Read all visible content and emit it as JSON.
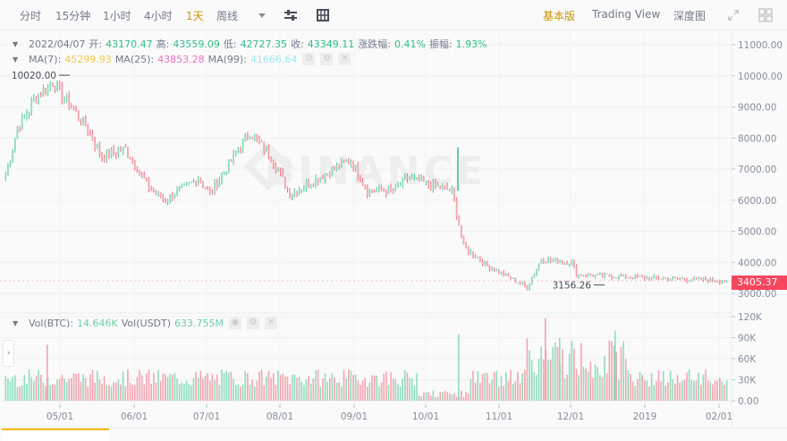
{
  "toolbar": {
    "intervals": [
      {
        "label": "分时",
        "active": false
      },
      {
        "label": "15分钟",
        "active": false
      },
      {
        "label": "1小时",
        "active": false
      },
      {
        "label": "4小时",
        "active": false
      },
      {
        "label": "1天",
        "active": true
      },
      {
        "label": "周线",
        "active": false
      }
    ],
    "more_icon": "caret-down-icon",
    "indicator_icon": "sliders-icon",
    "layout_icon": "grid-table-icon",
    "views": [
      {
        "label": "基本版",
        "active": true
      },
      {
        "label": "Trading View",
        "active": false
      },
      {
        "label": "深度图",
        "active": false
      }
    ],
    "fullscreen_icon": "expand-icon",
    "panels_icon": "four-squares-icon"
  },
  "ohlc_legend": {
    "date": "2022/04/07",
    "open_label": "开:",
    "open": "43170.47",
    "high_label": "高:",
    "high": "43559.09",
    "low_label": "低:",
    "low": "42727.35",
    "close_label": "收:",
    "close": "43349.11",
    "change_label": "涨跌幅:",
    "change": "0.41%",
    "amplitude_label": "振幅:",
    "amplitude": "1.93%"
  },
  "ma_legend": {
    "ma7_label": "MA(7):",
    "ma7": "45299.93",
    "ma25_label": "MA(25):",
    "ma25": "43853.28",
    "ma99_label": "MA(99):",
    "ma99": "41666.64"
  },
  "vol_legend": {
    "btc_label": "Vol(BTC):",
    "btc": "14.646K",
    "usdt_label": "Vol(USDT)",
    "usdt": "633.755M"
  },
  "current_price": "3405.37",
  "max_marker": "10020.00",
  "min_marker": "3156.26",
  "watermark": "BINANCE",
  "colors": {
    "up": "#2ebd85",
    "down": "#f6465d",
    "accent": "#c99400",
    "price_label_bg": "#f6465d"
  },
  "chart_data": [
    {
      "type": "candlestick",
      "title": "Price (daily)",
      "xlabel": "",
      "ylabel": "",
      "x_ticks": [
        "05/01",
        "06/01",
        "07/01",
        "08/01",
        "09/01",
        "10/01",
        "11/01",
        "12/01",
        "2019",
        "02/01"
      ],
      "y_ticks": [
        "11000.00",
        "10000.00",
        "9000.00",
        "8000.00",
        "7000.00",
        "6000.00",
        "5000.00",
        "4000.00",
        "3000.00"
      ],
      "ylim": [
        2700,
        11300
      ],
      "grid": true,
      "annotations": [
        {
          "label": "10020.00",
          "type": "max"
        },
        {
          "label": "3156.26",
          "type": "min"
        },
        {
          "label": "3405.37",
          "type": "last_price"
        }
      ],
      "approx_close_path": [
        {
          "date": "04/07",
          "close": 6800
        },
        {
          "date": "04/15",
          "close": 8300
        },
        {
          "date": "04/24",
          "close": 9300
        },
        {
          "date": "05/05",
          "close": 9800
        },
        {
          "date": "05/10",
          "close": 9300
        },
        {
          "date": "05/20",
          "close": 8400
        },
        {
          "date": "05/28",
          "close": 7400
        },
        {
          "date": "06/08",
          "close": 7650
        },
        {
          "date": "06/14",
          "close": 6400
        },
        {
          "date": "06/24",
          "close": 6000
        },
        {
          "date": "07/08",
          "close": 6700
        },
        {
          "date": "07/13",
          "close": 6200
        },
        {
          "date": "07/25",
          "close": 8200
        },
        {
          "date": "08/03",
          "close": 7400
        },
        {
          "date": "08/14",
          "close": 6200
        },
        {
          "date": "09/04",
          "close": 7300
        },
        {
          "date": "09/10",
          "close": 6300
        },
        {
          "date": "10/11",
          "close": 6300
        },
        {
          "date": "10/15",
          "close": 6700
        },
        {
          "date": "11/14",
          "close": 6300
        },
        {
          "date": "11/20",
          "close": 4500
        },
        {
          "date": "11/26",
          "close": 3900
        },
        {
          "date": "12/15",
          "close": 3200
        },
        {
          "date": "12/24",
          "close": 4100
        },
        {
          "date": "01/09",
          "close": 4000
        },
        {
          "date": "01/12",
          "close": 3600
        },
        {
          "date": "02/07",
          "close": 3405
        }
      ]
    },
    {
      "type": "bar",
      "title": "Volume",
      "series": [
        {
          "name": "Vol(BTC)",
          "last": "14.646K"
        },
        {
          "name": "Vol(USDT)",
          "last": "633.755M"
        }
      ],
      "y_ticks": [
        "120K",
        "90K",
        "60K",
        "30K",
        "0.00"
      ],
      "ylim": [
        0,
        120000
      ],
      "peaks": [
        {
          "date": "11/20",
          "value": 118000
        },
        {
          "date": "12/17",
          "value": 100000
        },
        {
          "date": "10/15",
          "value": 95000
        }
      ]
    }
  ]
}
